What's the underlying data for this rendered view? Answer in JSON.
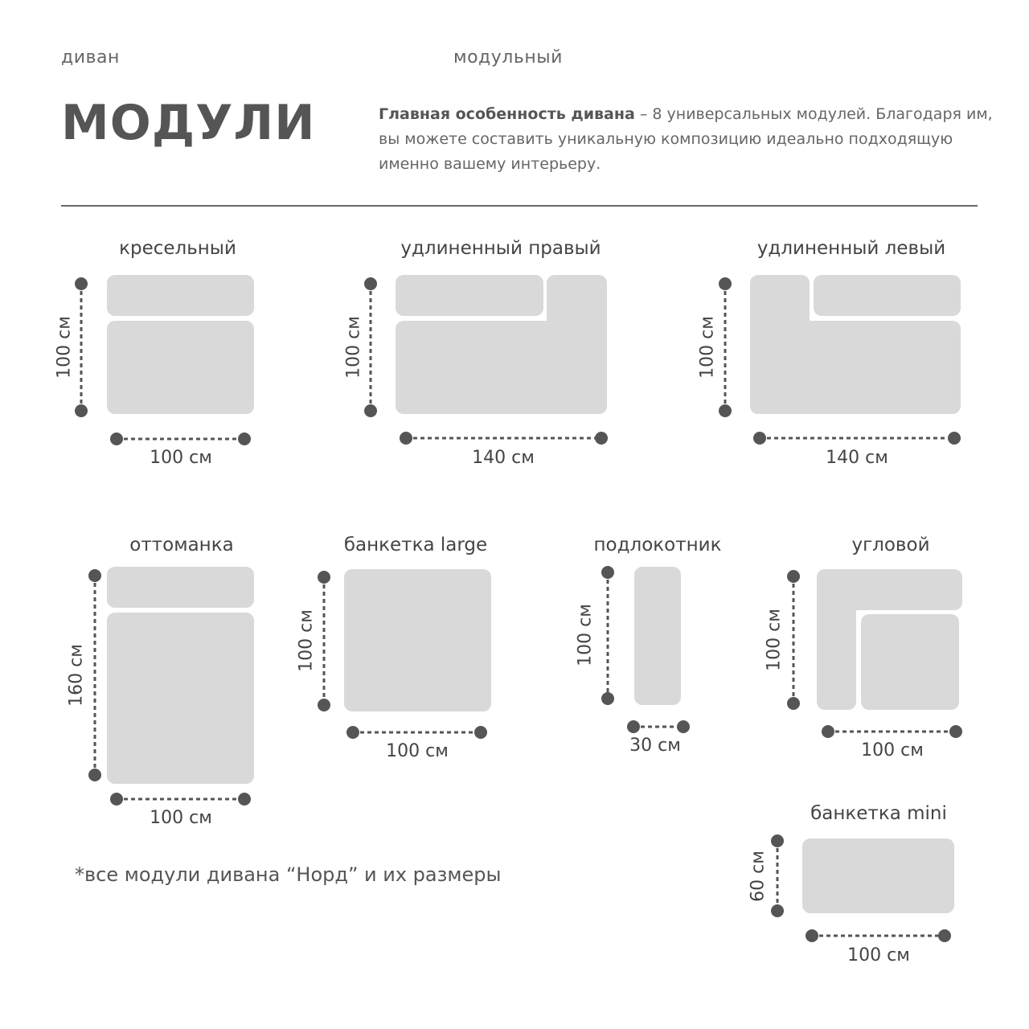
{
  "header": {
    "left_label": "диван",
    "center_label": "модульный",
    "title": "МОДУЛИ",
    "description_bold": "Главная особенность дивана",
    "description_rest": " – 8 универсальных модулей. Благодаря им,  вы можете составить уникальную композицию идеально подходящую именно вашему интерьеру."
  },
  "colors": {
    "text": "#555555",
    "module_fill": "#d9d9d9",
    "dimension": "#555555"
  },
  "modules": [
    {
      "name": "кресельный",
      "height": "100 см",
      "width": "100 см"
    },
    {
      "name": "удлиненный правый",
      "height": "100 см",
      "width": "140 см"
    },
    {
      "name": "удлиненный левый",
      "height": "100 см",
      "width": "140 см"
    },
    {
      "name": "оттоманка",
      "height": "160 см",
      "width": "100 см"
    },
    {
      "name": "банкетка large",
      "height": "100 см",
      "width": "100 см"
    },
    {
      "name": "подлокотник",
      "height": "100 см",
      "width": "30 см"
    },
    {
      "name": "угловой",
      "height": "100 см",
      "width": "100 см"
    },
    {
      "name": "банкетка mini",
      "height": "60 см",
      "width": "100 см"
    }
  ],
  "footnote": "*все модули дивана “Норд” и их размеры"
}
